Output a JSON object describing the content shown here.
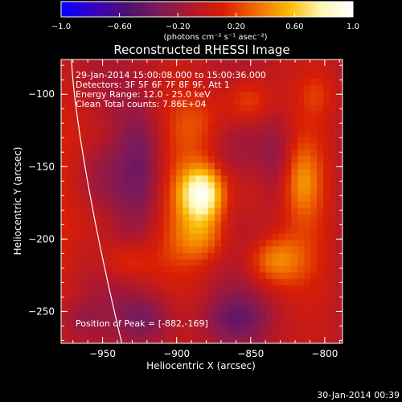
{
  "chart_data": {
    "type": "heatmap",
    "title": "Reconstructed RHESSI Image",
    "xlabel": "Heliocentric X (arcsec)",
    "ylabel": "Heliocentric Y (arcsec)",
    "xlim": [
      -978,
      -788
    ],
    "ylim": [
      -272,
      -76
    ],
    "xticks": [
      {
        "v": -950,
        "label": "−950"
      },
      {
        "v": -900,
        "label": "−900"
      },
      {
        "v": -850,
        "label": "−850"
      },
      {
        "v": -800,
        "label": "−800"
      }
    ],
    "yticks": [
      {
        "v": -100,
        "label": "−100"
      },
      {
        "v": -150,
        "label": "−150"
      },
      {
        "v": -200,
        "label": "−200"
      },
      {
        "v": -250,
        "label": "−250"
      }
    ],
    "colorbar": {
      "range": [
        -1.0,
        1.0
      ],
      "ticks": [
        {
          "v": -1.0,
          "label": "−1.0"
        },
        {
          "v": -0.6,
          "label": "−0.60"
        },
        {
          "v": -0.2,
          "label": "−0.20"
        },
        {
          "v": 0.2,
          "label": "0.20"
        },
        {
          "v": 0.6,
          "label": "0.60"
        },
        {
          "v": 1.0,
          "label": "1.0"
        }
      ],
      "unit_label": "(photons cm⁻² s⁻¹ asec⁻²)",
      "colormap": [
        "#0000ff",
        "#3a00c0",
        "#4b1070",
        "#7a1a5a",
        "#b0182c",
        "#d81e05",
        "#f06a00",
        "#f9b800",
        "#fff7b0",
        "#ffffff"
      ]
    },
    "annotations": [
      "29-Jan-2014 15:00:08.000 to 15:00:36.000",
      "Detectors: 3F 5F 6F 7F 8F 9F, Att 1",
      "Energy Range: 12.0 - 25.0 keV",
      "Clean    Total counts: 7.86E+04"
    ],
    "peak_label": "Position of Peak = [-882,-169]",
    "peak": {
      "x": -882,
      "y": -169,
      "value": 1.0
    },
    "footer_date": "30-Jan-2014 00:39",
    "blobs": [
      {
        "x": -882,
        "y": -169,
        "sx": 11,
        "sy": 14,
        "a": 0.95
      },
      {
        "x": -882,
        "y": -200,
        "sx": 14,
        "sy": 12,
        "a": 0.35
      },
      {
        "x": -885,
        "y": -120,
        "sx": 14,
        "sy": 14,
        "a": 0.2
      },
      {
        "x": -955,
        "y": -125,
        "sx": 12,
        "sy": 14,
        "a": 0.15
      },
      {
        "x": -952,
        "y": -190,
        "sx": 12,
        "sy": 14,
        "a": 0.2
      },
      {
        "x": -935,
        "y": -215,
        "sx": 14,
        "sy": 10,
        "a": 0.3
      },
      {
        "x": -852,
        "y": -105,
        "sx": 12,
        "sy": 12,
        "a": 0.35
      },
      {
        "x": -852,
        "y": -170,
        "sx": 10,
        "sy": 18,
        "a": 0.25
      },
      {
        "x": -835,
        "y": -215,
        "sx": 14,
        "sy": 12,
        "a": 0.45
      },
      {
        "x": -815,
        "y": -160,
        "sx": 8,
        "sy": 16,
        "a": 0.3
      },
      {
        "x": -805,
        "y": -100,
        "sx": 8,
        "sy": 10,
        "a": 0.15
      },
      {
        "x": -922,
        "y": -150,
        "sx": 10,
        "sy": 30,
        "a": -0.3
      },
      {
        "x": -920,
        "y": -255,
        "sx": 14,
        "sy": 12,
        "a": -0.3
      },
      {
        "x": -860,
        "y": -255,
        "sx": 16,
        "sy": 12,
        "a": -0.3
      },
      {
        "x": -832,
        "y": -140,
        "sx": 8,
        "sy": 20,
        "a": -0.2
      },
      {
        "x": -965,
        "y": -255,
        "sx": 10,
        "sy": 10,
        "a": -0.15
      }
    ]
  }
}
